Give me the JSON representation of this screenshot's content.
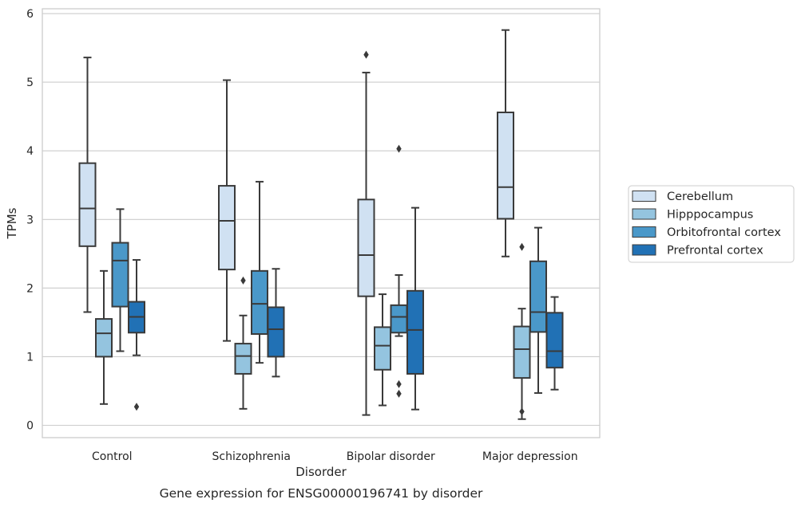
{
  "caption": "Gene expression for ENSG00000196741 by disorder",
  "chart_data": {
    "type": "box",
    "xlabel": "Disorder",
    "ylabel": "TPMs",
    "ylim": [
      -0.18,
      6.07
    ],
    "yticks": [
      0,
      1,
      2,
      3,
      4,
      5,
      6
    ],
    "grid": "horizontal",
    "legend_position": "right",
    "categories": [
      "Control",
      "Schizophrenia",
      "Bipolar disorder",
      "Major depression"
    ],
    "series": [
      {
        "name": "Cerebellum",
        "color": "#d0e1f2",
        "boxes": [
          {
            "whislo": 1.65,
            "q1": 2.61,
            "med": 3.16,
            "q3": 3.82,
            "whishi": 5.36,
            "fliers": []
          },
          {
            "whislo": 1.23,
            "q1": 2.27,
            "med": 2.98,
            "q3": 3.49,
            "whishi": 5.03,
            "fliers": []
          },
          {
            "whislo": 0.15,
            "q1": 1.88,
            "med": 2.48,
            "q3": 3.29,
            "whishi": 5.14,
            "fliers": [
              5.4
            ]
          },
          {
            "whislo": 2.46,
            "q1": 3.01,
            "med": 3.47,
            "q3": 4.56,
            "whishi": 5.76,
            "fliers": []
          }
        ]
      },
      {
        "name": "Hipppocampus",
        "color": "#94c4df",
        "boxes": [
          {
            "whislo": 0.31,
            "q1": 1.0,
            "med": 1.34,
            "q3": 1.55,
            "whishi": 2.25,
            "fliers": []
          },
          {
            "whislo": 0.24,
            "q1": 0.75,
            "med": 1.01,
            "q3": 1.19,
            "whishi": 1.6,
            "fliers": [
              2.11
            ]
          },
          {
            "whislo": 0.29,
            "q1": 0.81,
            "med": 1.16,
            "q3": 1.43,
            "whishi": 1.91,
            "fliers": []
          },
          {
            "whislo": 0.09,
            "q1": 0.69,
            "med": 1.11,
            "q3": 1.44,
            "whishi": 1.7,
            "fliers": [
              0.2,
              2.6
            ]
          }
        ]
      },
      {
        "name": "Orbitofrontal cortex",
        "color": "#4a98c9",
        "boxes": [
          {
            "whislo": 1.08,
            "q1": 1.73,
            "med": 2.4,
            "q3": 2.66,
            "whishi": 3.15,
            "fliers": []
          },
          {
            "whislo": 0.91,
            "q1": 1.33,
            "med": 1.77,
            "q3": 2.25,
            "whishi": 3.55,
            "fliers": []
          },
          {
            "whislo": 1.3,
            "q1": 1.35,
            "med": 1.58,
            "q3": 1.75,
            "whishi": 2.19,
            "fliers": [
              0.46,
              0.6,
              4.03
            ]
          },
          {
            "whislo": 0.47,
            "q1": 1.36,
            "med": 1.65,
            "q3": 2.39,
            "whishi": 2.88,
            "fliers": []
          }
        ]
      },
      {
        "name": "Prefrontal cortex",
        "color": "#2171b5",
        "boxes": [
          {
            "whislo": 1.02,
            "q1": 1.35,
            "med": 1.58,
            "q3": 1.8,
            "whishi": 2.41,
            "fliers": [
              0.27
            ]
          },
          {
            "whislo": 0.71,
            "q1": 1.0,
            "med": 1.4,
            "q3": 1.72,
            "whishi": 2.28,
            "fliers": []
          },
          {
            "whislo": 0.23,
            "q1": 0.75,
            "med": 1.39,
            "q3": 1.96,
            "whishi": 3.17,
            "fliers": []
          },
          {
            "whislo": 0.52,
            "q1": 0.84,
            "med": 1.08,
            "q3": 1.64,
            "whishi": 1.87,
            "fliers": []
          }
        ]
      }
    ]
  }
}
